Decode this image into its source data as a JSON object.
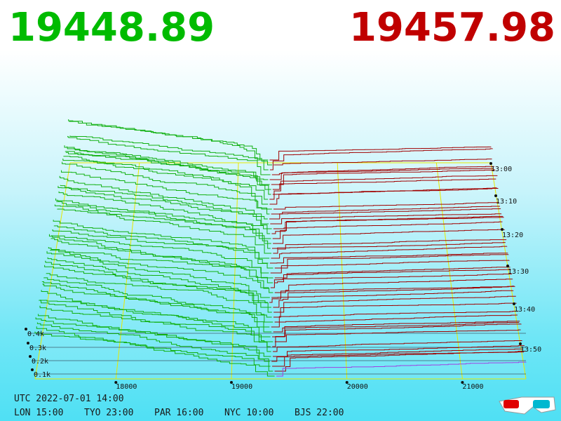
{
  "header": {
    "bid": "19448.89",
    "ask": "19457.98"
  },
  "axes": {
    "price_ticks": [
      "18000",
      "19000",
      "20000",
      "21000"
    ],
    "volume_ticks": [
      "0.1k",
      "0.2k",
      "0.3k",
      "0.4k"
    ],
    "time_ticks": [
      "13:00",
      "13:10",
      "13:20",
      "13:30",
      "13:40",
      "13:50"
    ]
  },
  "footer": {
    "utc": "UTC 2022-07-01 14:00",
    "clocks": [
      "LON 15:00",
      "TYO 23:00",
      "PAR 16:00",
      "NYC 10:00",
      "BJS 22:00"
    ]
  }
}
